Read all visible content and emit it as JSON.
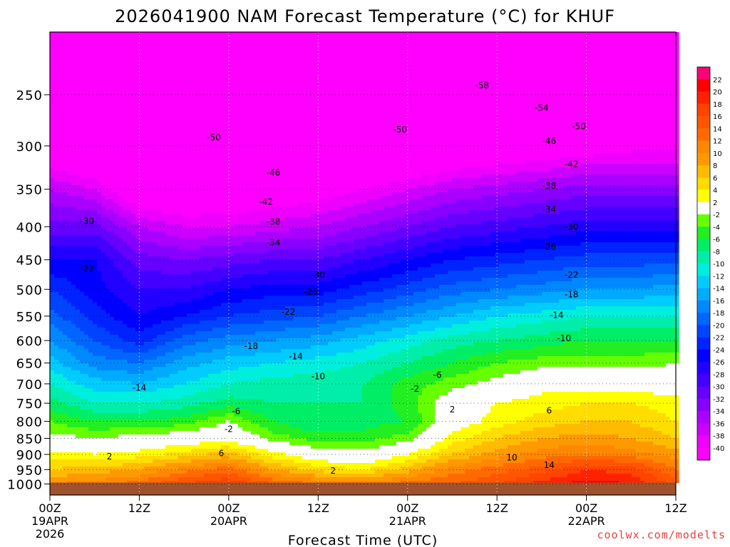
{
  "title": "2026041900 NAM Forecast Temperature (°C) for KHUF",
  "credit": "coolwx.com/modelts",
  "chart_data": {
    "type": "heatmap",
    "title": "2026041900 NAM Forecast Temperature (°C) for KHUF",
    "xlabel": "Forecast Time (UTC)",
    "ylabel": "",
    "xlim_hours": [
      0,
      84
    ],
    "ylim_hpa": [
      1040,
      200
    ],
    "y_log_scale": true,
    "x_ticks": [
      {
        "h": 0,
        "lines": [
          "00Z",
          "19APR",
          "2026"
        ]
      },
      {
        "h": 12,
        "lines": [
          "12Z"
        ]
      },
      {
        "h": 24,
        "lines": [
          "00Z",
          "20APR"
        ]
      },
      {
        "h": 36,
        "lines": [
          "12Z"
        ]
      },
      {
        "h": 48,
        "lines": [
          "00Z",
          "21APR"
        ]
      },
      {
        "h": 60,
        "lines": [
          "12Z"
        ]
      },
      {
        "h": 72,
        "lines": [
          "00Z",
          "22APR"
        ]
      },
      {
        "h": 84,
        "lines": [
          "12Z"
        ]
      }
    ],
    "y_ticks": [
      250,
      300,
      350,
      400,
      450,
      500,
      550,
      600,
      650,
      700,
      750,
      800,
      850,
      900,
      950,
      1000
    ],
    "grid": true,
    "legend_position": "right",
    "colorbar": {
      "labels": [
        "22",
        "20",
        "18",
        "16",
        "14",
        "12",
        "10",
        "8",
        "6",
        "4",
        "2",
        "-2",
        "-4",
        "-6",
        "-8",
        "-10",
        "-12",
        "-14",
        "-16",
        "-18",
        "-20",
        "-22",
        "-24",
        "-26",
        "-28",
        "-30",
        "-32",
        "-34",
        "-36",
        "-38",
        "-40"
      ],
      "colors": [
        "#ff0077",
        "#ff0000",
        "#ff2200",
        "#ff4400",
        "#ff5500",
        "#ff6a00",
        "#ff8800",
        "#ff9900",
        "#ffbb00",
        "#ffdd00",
        "#ffff00",
        "#ffffff",
        "#66ff00",
        "#22ee22",
        "#00ee66",
        "#00eeaa",
        "#00eedd",
        "#00ccff",
        "#00aaff",
        "#0088ff",
        "#0066ff",
        "#0044ff",
        "#0022ff",
        "#0000ff",
        "#2200ff",
        "#4400ff",
        "#6600ff",
        "#8800ff",
        "#aa00ff",
        "#cc00ff",
        "#ee00ff",
        "#ff00ff"
      ]
    },
    "temperature_field": {
      "hours": [
        0,
        6,
        12,
        18,
        24,
        30,
        36,
        42,
        48,
        54,
        60,
        66,
        72,
        78,
        84
      ],
      "levels_hpa": [
        1000,
        950,
        900,
        850,
        800,
        750,
        700,
        650,
        600,
        550,
        500,
        450,
        400,
        350,
        300,
        250,
        200
      ],
      "values_c": [
        [
          10,
          11,
          13,
          16,
          18,
          14,
          12,
          11,
          13,
          14,
          16,
          19,
          21,
          20,
          15
        ],
        [
          6,
          7,
          8,
          11,
          13,
          8,
          5,
          4,
          7,
          11,
          13,
          15,
          18,
          17,
          12
        ],
        [
          3,
          2,
          3,
          5,
          7,
          3,
          0,
          -1,
          2,
          6,
          9,
          11,
          12,
          11,
          9
        ],
        [
          -1,
          -2,
          -1,
          0,
          1,
          -3,
          -5,
          -5,
          -3,
          3,
          6,
          8,
          9,
          8,
          6
        ],
        [
          -4,
          -6,
          -6,
          -5,
          -2,
          -6,
          -8,
          -7,
          -6,
          0,
          3,
          5,
          6,
          6,
          4
        ],
        [
          -7,
          -10,
          -10,
          -9,
          -7,
          -8,
          -8,
          -8,
          -5,
          0,
          2,
          3,
          4,
          4,
          3
        ],
        [
          -10,
          -13,
          -14,
          -12,
          -10,
          -9,
          -9,
          -8,
          -5,
          -3,
          -1,
          1,
          1,
          1,
          0
        ],
        [
          -13,
          -17,
          -18,
          -15,
          -13,
          -12,
          -11,
          -10,
          -8,
          -6,
          -4,
          -3,
          -3,
          -3,
          -2
        ],
        [
          -16,
          -20,
          -23,
          -19,
          -17,
          -16,
          -15,
          -13,
          -11,
          -9,
          -8,
          -7,
          -6,
          -6,
          -6
        ],
        [
          -19,
          -23,
          -26,
          -24,
          -22,
          -21,
          -20,
          -18,
          -16,
          -14,
          -12,
          -11,
          -10,
          -10,
          -10
        ],
        [
          -22,
          -25,
          -28,
          -28,
          -26,
          -25,
          -25,
          -23,
          -21,
          -19,
          -18,
          -17,
          -16,
          -16,
          -15
        ],
        [
          -26,
          -26,
          -31,
          -32,
          -31,
          -30,
          -30,
          -28,
          -26,
          -24,
          -23,
          -22,
          -21,
          -21,
          -21
        ],
        [
          -31,
          -31,
          -36,
          -38,
          -38,
          -37,
          -36,
          -34,
          -32,
          -30,
          -29,
          -28,
          -27,
          -27,
          -27
        ],
        [
          -36,
          -38,
          -44,
          -45,
          -44,
          -43,
          -42,
          -40,
          -38,
          -36,
          -35,
          -34,
          -33,
          -33,
          -33
        ],
        [
          -44,
          -47,
          -51,
          -52,
          -51,
          -50,
          -49,
          -48,
          -47,
          -45,
          -44,
          -43,
          -42,
          -41,
          -41
        ],
        [
          -50,
          -54,
          -55,
          -56,
          -56,
          -56,
          -55,
          -54,
          -53,
          -52,
          -51,
          -50,
          -49,
          -48,
          -48
        ],
        [
          -54,
          -57,
          -58,
          -58,
          -59,
          -59,
          -59,
          -59,
          -59,
          -58,
          -57,
          -56,
          -55,
          -54,
          -54
        ]
      ]
    },
    "surface_pressure_hpa": 995,
    "contour_labels": [
      {
        "text": "-58",
        "h": 58,
        "p": 242
      },
      {
        "text": "-54",
        "h": 66,
        "p": 262
      },
      {
        "text": "-50",
        "h": 22,
        "p": 291
      },
      {
        "text": "-50",
        "h": 47,
        "p": 283
      },
      {
        "text": "-50",
        "h": 71,
        "p": 280
      },
      {
        "text": "-46",
        "h": 30,
        "p": 330
      },
      {
        "text": "-46",
        "h": 67,
        "p": 295
      },
      {
        "text": "-42",
        "h": 29,
        "p": 366
      },
      {
        "text": "-42",
        "h": 70,
        "p": 320
      },
      {
        "text": "-38",
        "h": 30,
        "p": 393
      },
      {
        "text": "-38",
        "h": 67,
        "p": 346
      },
      {
        "text": "-34",
        "h": 30,
        "p": 423
      },
      {
        "text": "-34",
        "h": 67,
        "p": 376
      },
      {
        "text": "-30",
        "h": 5,
        "p": 392
      },
      {
        "text": "-30",
        "h": 36,
        "p": 475
      },
      {
        "text": "-30",
        "h": 70,
        "p": 400
      },
      {
        "text": "-26",
        "h": 35,
        "p": 505
      },
      {
        "text": "-26",
        "h": 67,
        "p": 430
      },
      {
        "text": "-22",
        "h": 5,
        "p": 465
      },
      {
        "text": "-22",
        "h": 32,
        "p": 542
      },
      {
        "text": "-22",
        "h": 70,
        "p": 475
      },
      {
        "text": "-18",
        "h": 27,
        "p": 612
      },
      {
        "text": "-18",
        "h": 70,
        "p": 509
      },
      {
        "text": "-14",
        "h": 12,
        "p": 710
      },
      {
        "text": "-14",
        "h": 33,
        "p": 635
      },
      {
        "text": "-14",
        "h": 68,
        "p": 548
      },
      {
        "text": "-10",
        "h": 36,
        "p": 682
      },
      {
        "text": "-10",
        "h": 69,
        "p": 595
      },
      {
        "text": "-6",
        "h": 52,
        "p": 678
      },
      {
        "text": "-6",
        "h": 25,
        "p": 772
      },
      {
        "text": "-2",
        "h": 24,
        "p": 823
      },
      {
        "text": "-2",
        "h": 49,
        "p": 713
      },
      {
        "text": "2",
        "h": 8,
        "p": 907
      },
      {
        "text": "2",
        "h": 38,
        "p": 954
      },
      {
        "text": "2",
        "h": 54,
        "p": 767
      },
      {
        "text": "6",
        "h": 23,
        "p": 897
      },
      {
        "text": "6",
        "h": 67,
        "p": 770
      },
      {
        "text": "10",
        "h": 62,
        "p": 910
      },
      {
        "text": "14",
        "h": 67,
        "p": 935
      }
    ]
  }
}
